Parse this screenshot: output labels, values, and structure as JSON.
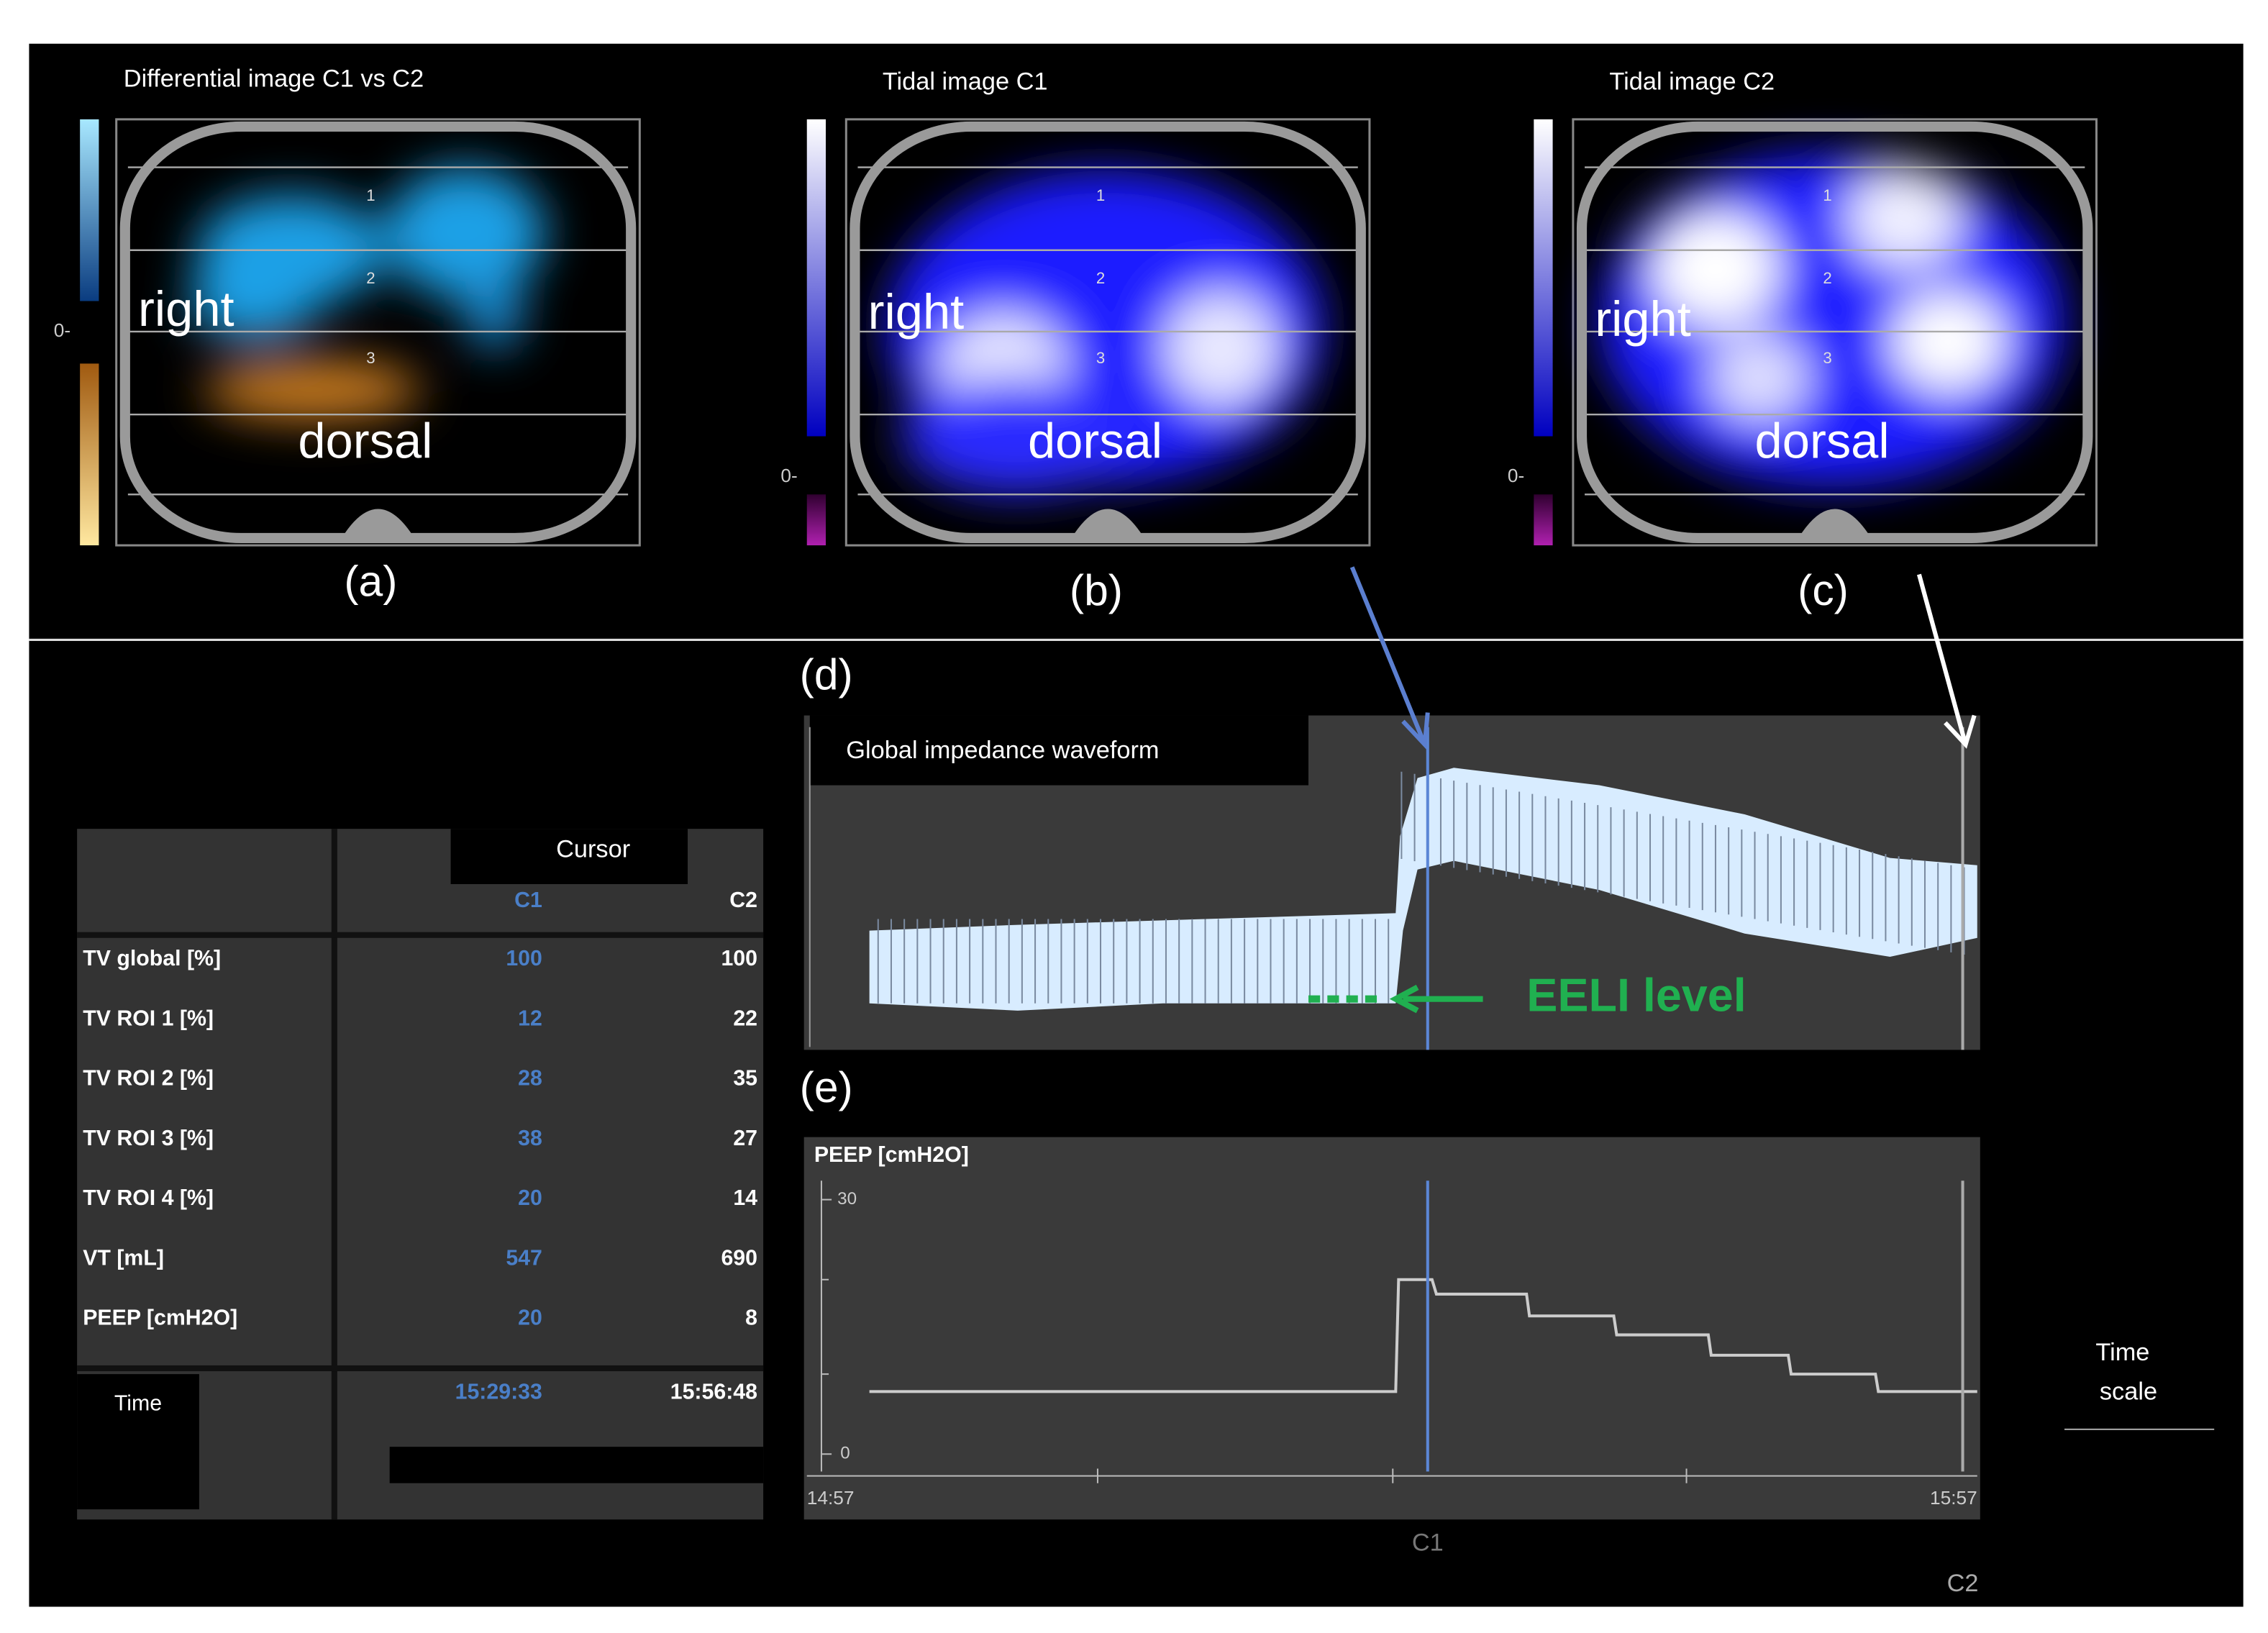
{
  "panels": [
    {
      "title": "Differential image C1 vs C2",
      "label": "(a)",
      "side": "right",
      "region": "dorsal",
      "scale_zero": "0-",
      "rois": [
        "1",
        "2",
        "3"
      ]
    },
    {
      "title": "Tidal image C1",
      "label": "(b)",
      "side": "right",
      "region": "dorsal",
      "scale_zero": "0-",
      "rois": [
        "1",
        "2",
        "3"
      ]
    },
    {
      "title": "Tidal image C2",
      "label": "(c)",
      "side": "right",
      "region": "dorsal",
      "scale_zero": "0-",
      "rois": [
        "1",
        "2",
        "3"
      ]
    }
  ],
  "waveform": {
    "label": "(d)",
    "title": "Global impedance waveform",
    "annotation": "EELI level"
  },
  "peep_chart": {
    "label": "(e)",
    "title": "PEEP [cmH2O]",
    "yticks": [
      30,
      0
    ],
    "time_labels": [
      "14:57",
      "15:57"
    ],
    "cursors": [
      "C1",
      "C2"
    ]
  },
  "table": {
    "title": "Cursor",
    "columns": [
      "C1",
      "C2"
    ],
    "rows": [
      {
        "label": "TV global [%]",
        "values": [
          100,
          100
        ]
      },
      {
        "label": "TV ROI 1 [%]",
        "values": [
          12,
          22
        ]
      },
      {
        "label": "TV ROI 2 [%]",
        "values": [
          28,
          35
        ]
      },
      {
        "label": "TV ROI 3 [%]",
        "values": [
          38,
          27
        ]
      },
      {
        "label": "TV ROI 4 [%]",
        "values": [
          20,
          14
        ]
      },
      {
        "label": "VT [mL]",
        "values": [
          547,
          690
        ]
      },
      {
        "label": "PEEP [cmH2O]",
        "values": [
          20,
          8
        ]
      }
    ],
    "time_label": "Time",
    "times": [
      "15:29:33",
      "15:56:48"
    ]
  },
  "time_scale": [
    "Time",
    "scale"
  ]
}
